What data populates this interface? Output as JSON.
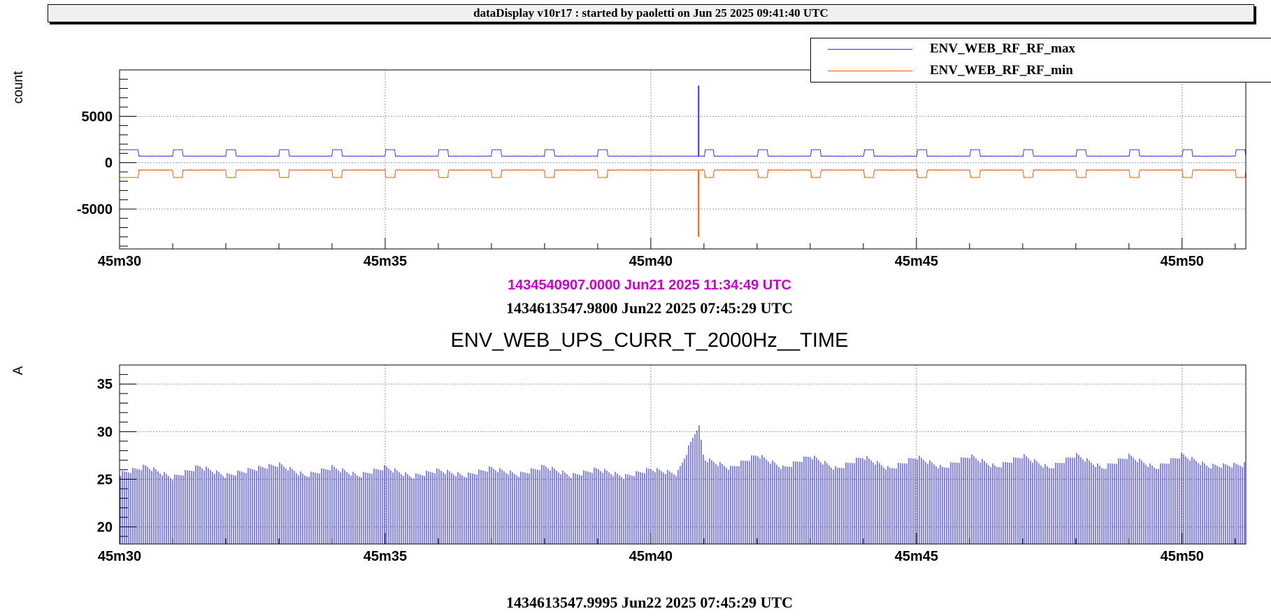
{
  "header": {
    "title": "dataDisplay v10r17 : started by paoletti on Jun 25 2025 09:41:40 UTC"
  },
  "top_panel": {
    "unit": "count",
    "ref_time_magenta": "1434540907.0000 Jun21 2025 11:34:49 UTC",
    "ref_time": "1434613547.9800 Jun22 2025 07:45:29 UTC",
    "colors": {
      "max": "#3333ff",
      "min": "#ff5500",
      "ref_time_magenta": "#cc00cc"
    }
  },
  "bottom_panel": {
    "title": "ENV_WEB_UPS_CURR_T_2000Hz__TIME",
    "unit": "A",
    "ref_time": "1434613547.9995 Jun22 2025 07:45:29 UTC",
    "colors": {
      "current": "#3333ff"
    }
  },
  "chart_data": [
    {
      "type": "line",
      "ylabel": "count",
      "ylim": [
        -9300,
        10000
      ],
      "xlim_seconds": [
        0,
        21.2
      ],
      "x_tick_labels": [
        "45m30",
        "45m35",
        "45m40",
        "45m45",
        "45m50"
      ],
      "x_tick_seconds": [
        0,
        5,
        10,
        15,
        20
      ],
      "y_tick_labels": [
        "5000",
        "0",
        "-5000"
      ],
      "y_tick_values": [
        5000,
        0,
        -5000
      ],
      "grid": true,
      "legend_position": "top-right",
      "series": [
        {
          "name": "ENV_WEB_RF_RF_max",
          "baseline": 700,
          "pulse_level": 1400,
          "pulse_centers_s": [
            1.1,
            2.1,
            3.1,
            4.1,
            5.1,
            6.1,
            7.1,
            8.1,
            9.1,
            11.1,
            12.1,
            13.1,
            14.1,
            15.1,
            16.1,
            17.1,
            18.1,
            19.1,
            20.1,
            21.1
          ],
          "spike": {
            "x_s": 10.9,
            "value": 8300
          }
        },
        {
          "name": "ENV_WEB_RF_RF_min",
          "baseline": -800,
          "pulse_level": -1600,
          "pulse_centers_s": [
            1.1,
            2.1,
            3.1,
            4.1,
            5.1,
            6.1,
            7.1,
            8.1,
            9.1,
            11.1,
            12.1,
            13.1,
            14.1,
            15.1,
            16.1,
            17.1,
            18.1,
            19.1,
            20.1,
            21.1
          ],
          "spike": {
            "x_s": 10.9,
            "value": -8000
          }
        }
      ]
    },
    {
      "type": "bar",
      "title": "ENV_WEB_UPS_CURR_T_2000Hz__TIME",
      "ylabel": "A",
      "ylim": [
        18.2,
        37
      ],
      "xlim_seconds": [
        0,
        21.2
      ],
      "x_tick_labels": [
        "45m30",
        "45m35",
        "45m40",
        "45m45",
        "45m50"
      ],
      "x_tick_seconds": [
        0,
        5,
        10,
        15,
        20
      ],
      "y_tick_labels": [
        "35",
        "30",
        "25",
        "20"
      ],
      "y_tick_values": [
        35,
        30,
        25,
        20
      ],
      "grid": true,
      "series": [
        {
          "name": "",
          "envelope_s": [
            0,
            0.5,
            1,
            1.5,
            2,
            2.5,
            3,
            3.5,
            4,
            4.5,
            5,
            5.5,
            6,
            6.5,
            7,
            7.5,
            8,
            8.5,
            9,
            9.5,
            10,
            10.5,
            10.9,
            11,
            11.5,
            12,
            12.5,
            13,
            13.5,
            14,
            14.5,
            15,
            15.5,
            16,
            16.5,
            17,
            17.5,
            18,
            18.5,
            19,
            19.5,
            20,
            20.5,
            21.2
          ],
          "envelope_a": [
            25.8,
            26.6,
            25.4,
            26.6,
            25.6,
            26.3,
            26.8,
            25.6,
            26.5,
            25.6,
            26.5,
            25.5,
            26.2,
            25.6,
            26.4,
            25.7,
            26.6,
            25.6,
            26.3,
            25.5,
            26.3,
            25.8,
            31.0,
            27.4,
            26.4,
            27.8,
            26.4,
            27.7,
            26.3,
            27.6,
            26.3,
            27.6,
            26.4,
            27.7,
            26.5,
            27.7,
            26.4,
            27.8,
            26.4,
            27.7,
            26.4,
            27.8,
            26.6,
            26.8
          ],
          "baseline": 18.2
        }
      ]
    }
  ]
}
